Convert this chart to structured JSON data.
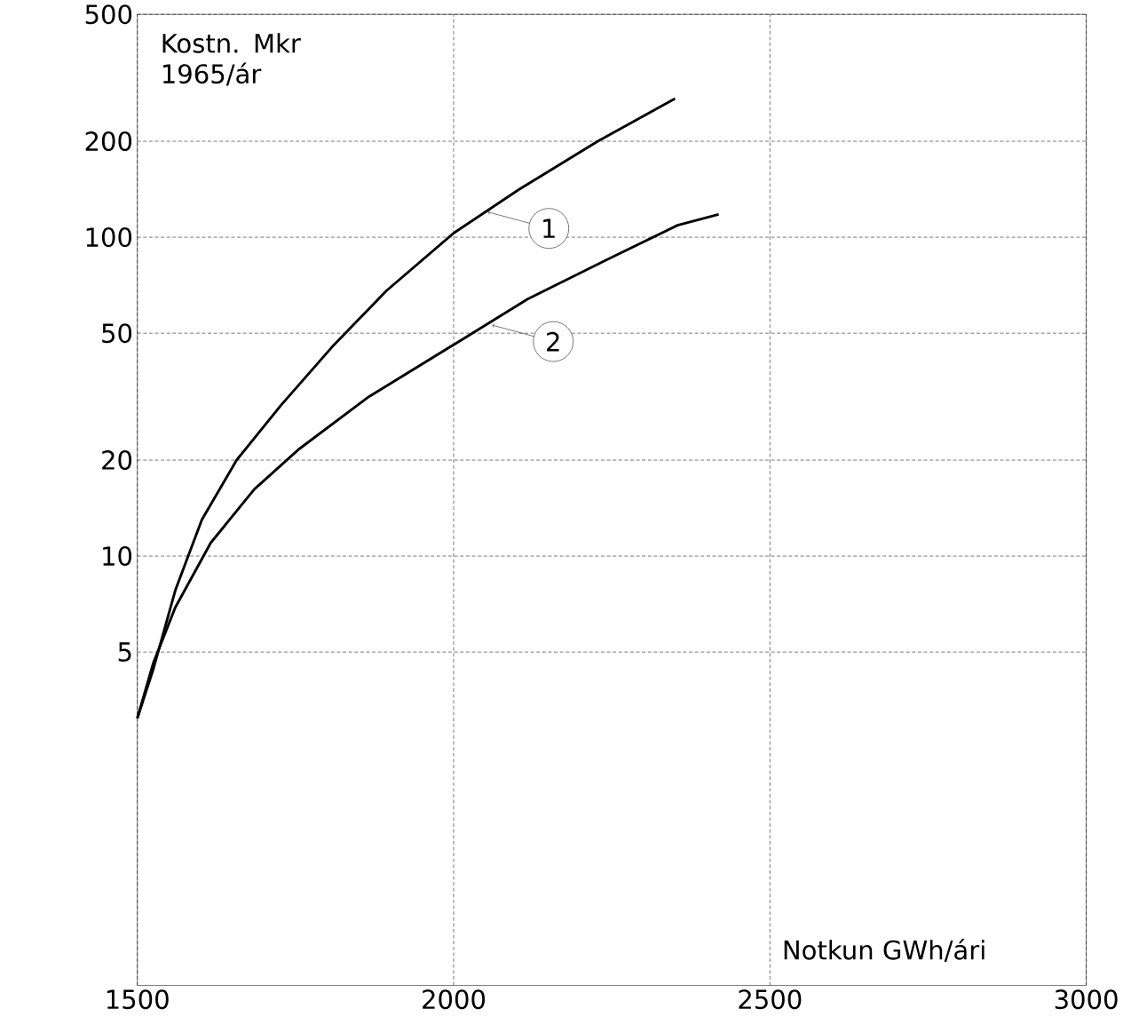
{
  "chart_data": {
    "type": "line",
    "xlabel": "Notkun GWh/ári",
    "ylabel": "Kostn. Mkr 1965/ár",
    "log": "y",
    "grid": true,
    "marker": "none",
    "line_style": "solid",
    "xlim": [
      1500,
      3000
    ],
    "ylim": [
      0.45,
      500
    ],
    "xticks": [
      1500,
      2000,
      2500,
      3000
    ],
    "yticks": [
      5,
      10,
      20,
      50,
      100,
      200,
      500
    ],
    "annotations": [
      {
        "text": "1",
        "x": 2054,
        "y": 120
      },
      {
        "text": "2",
        "x": 2061,
        "y": 53
      }
    ],
    "series": [
      {
        "color": "#000000",
        "x": [
          1500,
          1525,
          1560,
          1602,
          1657,
          1727,
          1811,
          1894,
          2000,
          2103,
          2228,
          2350
        ],
        "values": [
          3.1,
          4.4,
          7.8,
          13,
          20,
          29.7,
          46,
          68,
          103,
          141,
          200,
          272
        ]
      },
      {
        "color": "#000000",
        "x": [
          1500,
          1525,
          1560,
          1616,
          1685,
          1755,
          1866,
          2000,
          2117,
          2242,
          2354,
          2419
        ],
        "values": [
          3.1,
          4.6,
          6.9,
          11,
          16.2,
          21.6,
          31.6,
          46,
          64,
          85,
          109,
          118
        ]
      }
    ]
  }
}
